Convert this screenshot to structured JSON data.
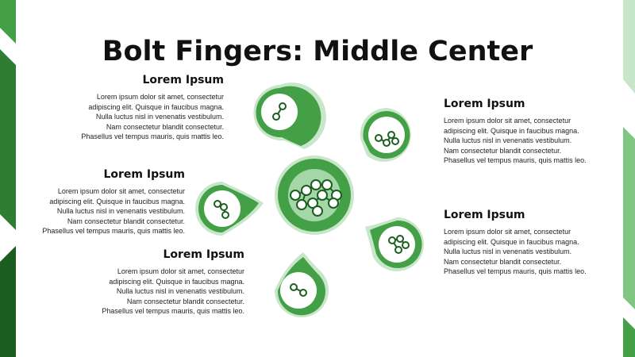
{
  "title": "Bolt Fingers: Middle Center",
  "colors": {
    "dark_green": "#1b5e20",
    "mid_green": "#43a047",
    "light_green": "#a5d6a7",
    "pale_green": "#c8e6c9"
  },
  "blocks": [
    {
      "heading": "Lorem Ipsum",
      "lines": [
        "Lorem ipsum dolor sit amet, consectetur",
        "adipiscing elit. Quisque in faucibus magna.",
        "Nulla luctus nisl in venenatis vestibulum.",
        "Nam consectetur blandit consectetur.",
        "Phasellus vel tempus mauris, quis mattis leo."
      ]
    },
    {
      "heading": "Lorem Ipsum",
      "lines": [
        "Lorem ipsum dolor sit amet, consectetur",
        "adipiscing elit. Quisque in faucibus magna.",
        "Nulla luctus nisl in venenatis vestibulum.",
        "Nam consectetur blandit consectetur.",
        "Phasellus vel tempus mauris, quis mattis leo."
      ]
    },
    {
      "heading": "Lorem Ipsum",
      "lines": [
        "Lorem ipsum dolor sit amet, consectetur",
        "adipiscing elit. Quisque in faucibus magna.",
        "Nulla luctus nisl in venenatis vestibulum.",
        "Nam consectetur blandit consectetur.",
        "Phasellus vel tempus mauris, quis mattis leo."
      ]
    },
    {
      "heading": "Lorem Ipsum",
      "lines": [
        "Lorem ipsum dolor sit amet, consectetur",
        "adipiscing elit. Quisque in faucibus magna.",
        "Nulla luctus nisl in venenatis vestibulum.",
        "Nam consectetur blandit consectetur.",
        "Phasellus vel tempus mauris, quis mattis leo."
      ]
    },
    {
      "heading": "Lorem Ipsum",
      "lines": [
        "Lorem ipsum dolor sit amet, consectetur",
        "adipiscing elit. Quisque in faucibus magna.",
        "Nulla luctus nisl in venenatis vestibulum.",
        "Nam consectetur blandit consectetur.",
        "Phasellus vel tempus mauris, quis mattis leo."
      ]
    }
  ],
  "center_icon": "molecule-cluster-icon",
  "finger_icons": [
    "two-atom-molecule-icon",
    "four-atom-molecule-icon",
    "three-atom-molecule-icon",
    "four-atom-molecule-icon",
    "two-atom-molecule-icon"
  ]
}
